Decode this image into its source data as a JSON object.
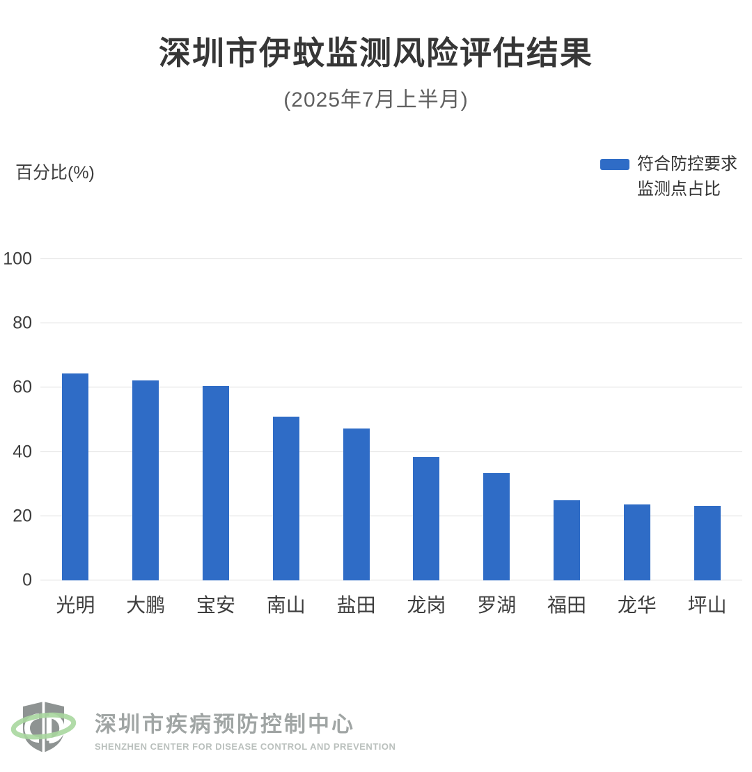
{
  "chart_data": {
    "type": "bar",
    "title": "深圳市伊蚊监测风险评估结果",
    "subtitle": "(2025年7月上半月)",
    "ylabel": "百分比(%)",
    "xlabel": "",
    "categories": [
      "光明",
      "大鹏",
      "宝安",
      "南山",
      "盐田",
      "龙岗",
      "罗湖",
      "福田",
      "龙华",
      "坪山"
    ],
    "values": [
      64.5,
      62.2,
      60.5,
      51.0,
      47.2,
      38.5,
      33.4,
      24.9,
      23.7,
      23.3
    ],
    "ylim": [
      0,
      100
    ],
    "ytick_interval": 20,
    "grid": true,
    "legend_position": "top-right",
    "series_name": "符合防控要求监测点占比"
  },
  "legend": {
    "label_lines": [
      "符合防控要求",
      "监测点占比"
    ]
  },
  "colors": {
    "bar": "#2f6cc6",
    "gridline": "#dcdcdc",
    "title": "#363636",
    "subtitle": "#5f5f5f",
    "axis_text": "#3b3b3b",
    "footer_text": "#969c9b",
    "footer_text_en": "#bac0bd",
    "logo_gray": "#8e9392",
    "logo_green": "#a8d79e"
  },
  "footer": {
    "org_name_cn": "深圳市疾病预防控制中心",
    "org_name_en": "SHENZHEN CENTER FOR DISEASE CONTROL AND PREVENTION"
  }
}
